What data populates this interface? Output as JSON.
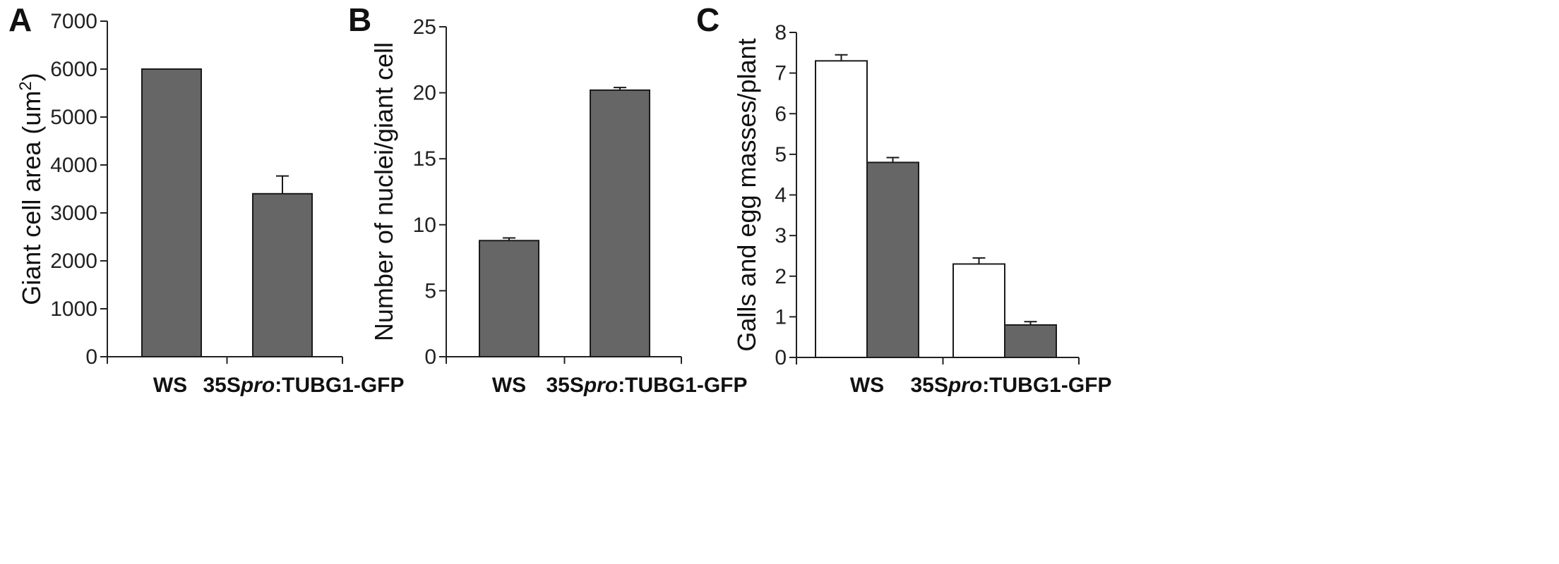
{
  "figure": {
    "panels": [
      "A",
      "B",
      "C"
    ]
  },
  "colors": {
    "dark_bar": "#666666",
    "light_bar": "#ffffff",
    "bar_stroke": "#1a1a1a",
    "axis": "#222222"
  },
  "chart_data": [
    {
      "panel": "A",
      "type": "bar",
      "categories": [
        "WS",
        "35Spro:TUBG1-GFP"
      ],
      "category_parts": [
        [
          {
            "text": "WS",
            "italic": false
          }
        ],
        [
          {
            "text": "35S",
            "italic": false
          },
          {
            "text": "pro",
            "italic": true
          },
          {
            "text": ":TUBG1-GFP",
            "italic": false
          }
        ]
      ],
      "series": [
        {
          "values": [
            6000,
            3400
          ],
          "errors": [
            0,
            370
          ],
          "fill": "dark"
        }
      ],
      "ylabel": "Giant cell area (um",
      "ylabel_sup": "2",
      "ylabel_tail": ")",
      "ylim": [
        0,
        7000
      ],
      "yticks": [
        0,
        1000,
        2000,
        3000,
        4000,
        5000,
        6000,
        7000
      ],
      "grid": false,
      "legend": "none"
    },
    {
      "panel": "B",
      "type": "bar",
      "categories": [
        "WS",
        "35Spro:TUBG1-GFP"
      ],
      "category_parts": [
        [
          {
            "text": "WS",
            "italic": false
          }
        ],
        [
          {
            "text": "35S",
            "italic": false
          },
          {
            "text": "pro",
            "italic": true
          },
          {
            "text": ":TUBG1-GFP",
            "italic": false
          }
        ]
      ],
      "series": [
        {
          "values": [
            8.8,
            20.2
          ],
          "errors": [
            0.2,
            0.2
          ],
          "fill": "dark"
        }
      ],
      "ylabel": "Number of nuclei/giant cell",
      "ylim": [
        0,
        25
      ],
      "yticks": [
        0,
        5,
        10,
        15,
        20,
        25
      ],
      "grid": false,
      "legend": "none"
    },
    {
      "panel": "C",
      "type": "bar",
      "categories": [
        "WS",
        "35Spro:TUBG1-GFP"
      ],
      "category_parts": [
        [
          {
            "text": "WS",
            "italic": false
          }
        ],
        [
          {
            "text": "35S",
            "italic": false
          },
          {
            "text": "pro",
            "italic": true
          },
          {
            "text": ":TUBG1-GFP",
            "italic": false
          }
        ]
      ],
      "series": [
        {
          "values": [
            7.3,
            2.3
          ],
          "errors": [
            0.15,
            0.15
          ],
          "fill": "light"
        },
        {
          "values": [
            4.8,
            0.8
          ],
          "errors": [
            0.12,
            0.08
          ],
          "fill": "dark"
        }
      ],
      "ylabel": "Galls and egg masses/plant",
      "ylim": [
        0,
        8
      ],
      "yticks": [
        0,
        1,
        2,
        3,
        4,
        5,
        6,
        7,
        8
      ],
      "grid": false,
      "legend": "none"
    }
  ]
}
